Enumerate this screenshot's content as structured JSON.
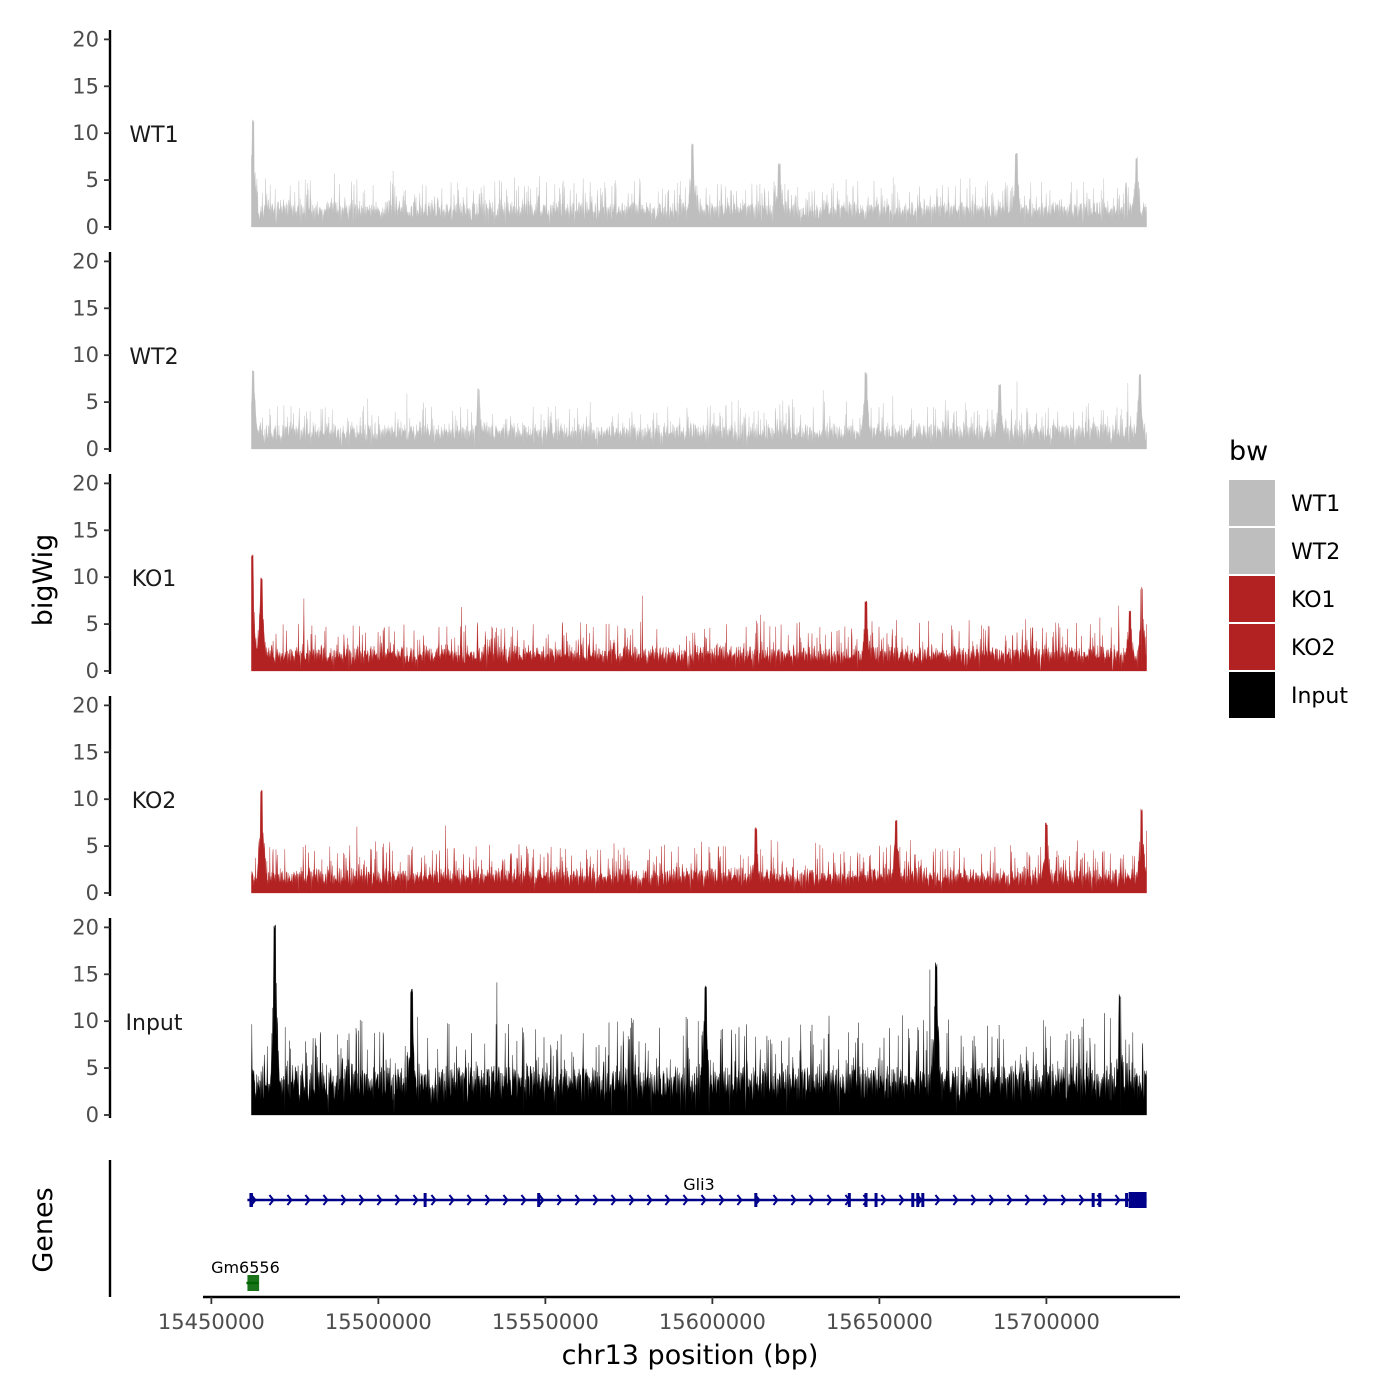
{
  "chart_data": {
    "type": "area",
    "x_axis": {
      "label": "chr13 position (bp)",
      "range": [
        15447500,
        15740000
      ],
      "data_range": [
        15462000,
        15730000
      ],
      "ticks": [
        15450000,
        15500000,
        15550000,
        15600000,
        15650000,
        15700000
      ],
      "tick_labels": [
        "15450000",
        "15500000",
        "15550000",
        "15600000",
        "15650000",
        "15700000"
      ]
    },
    "y_axis": {
      "label": "bigWig",
      "range": [
        0,
        21
      ],
      "ticks": [
        0,
        5,
        10,
        15,
        20
      ],
      "tick_labels": [
        "0",
        "5",
        "10",
        "15",
        "20"
      ]
    },
    "series": [
      {
        "name": "WT1",
        "color": "#BEBEBE",
        "baseline": 2.0,
        "noise": 1.6,
        "max": 11.5,
        "peaks": [
          [
            15462500,
            11.5
          ],
          [
            15594000,
            9.0
          ],
          [
            15691000,
            8.0
          ],
          [
            15727000,
            7.5
          ],
          [
            15620000,
            6.8
          ]
        ]
      },
      {
        "name": "WT2",
        "color": "#BEBEBE",
        "baseline": 2.0,
        "noise": 1.6,
        "max": 8.5,
        "peaks": [
          [
            15462500,
            8.5
          ],
          [
            15646000,
            8.2
          ],
          [
            15728000,
            8.0
          ],
          [
            15686000,
            7.0
          ],
          [
            15530000,
            6.5
          ]
        ]
      },
      {
        "name": "KO1",
        "color": "#B22222",
        "baseline": 1.8,
        "noise": 1.8,
        "max": 12.5,
        "peaks": [
          [
            15462200,
            12.5
          ],
          [
            15465000,
            10.0
          ],
          [
            15646000,
            7.6
          ],
          [
            15728500,
            9.0
          ],
          [
            15725000,
            6.5
          ]
        ]
      },
      {
        "name": "KO2",
        "color": "#B22222",
        "baseline": 1.8,
        "noise": 1.8,
        "max": 11.0,
        "peaks": [
          [
            15465000,
            11.0
          ],
          [
            15728500,
            9.0
          ],
          [
            15655000,
            7.8
          ],
          [
            15700000,
            7.5
          ],
          [
            15613000,
            7.0
          ]
        ]
      },
      {
        "name": "Input",
        "color": "#000000",
        "baseline": 4.0,
        "noise": 3.2,
        "max": 20.3,
        "peaks": [
          [
            15469000,
            20.3
          ],
          [
            15667000,
            16.3
          ],
          [
            15598000,
            14.0
          ],
          [
            15510000,
            13.5
          ],
          [
            15722000,
            13.0
          ]
        ]
      }
    ],
    "legend": {
      "title": "bw",
      "position": "right",
      "entries": [
        {
          "label": "WT1",
          "color": "#BEBEBE"
        },
        {
          "label": "WT2",
          "color": "#BEBEBE"
        },
        {
          "label": "KO1",
          "color": "#B22222"
        },
        {
          "label": "KO2",
          "color": "#B22222"
        },
        {
          "label": "Input",
          "color": "#000000"
        }
      ]
    },
    "genes_track": {
      "label": "Genes",
      "genes": [
        {
          "name": "Gli3",
          "color": "#00008B",
          "start": 15460800,
          "end": 15730000,
          "strand": "+",
          "row": 1,
          "exons": [
            15462000,
            15514000,
            15548000,
            15613000,
            15641000,
            15646000,
            15649000,
            15660000,
            15661500,
            15663000,
            15714000,
            15716000,
            15724000
          ]
        },
        {
          "name": "Gm6556",
          "color": "#006400",
          "start": 15460500,
          "end": 15464000,
          "strand": "-",
          "row": 2
        }
      ]
    }
  }
}
